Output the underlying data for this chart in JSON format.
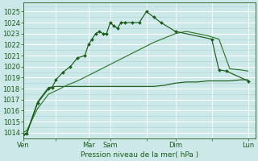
{
  "background_color": "#cce8e8",
  "grid_color": "#aad4d4",
  "grid_color_major": "#ffffff",
  "line_color_dark": "#1a5c1a",
  "line_color_medium": "#2d7a2d",
  "ylabel_text": "Pression niveau de la mer( hPa )",
  "ylim": [
    1013.5,
    1025.8
  ],
  "ylim_bottom": 1013.5,
  "ylim_top": 1025.8,
  "xtick_labels": [
    "Ven",
    "",
    "Mar",
    "Sam",
    "",
    "Dim",
    "",
    "Lun"
  ],
  "xtick_positions": [
    0,
    4.5,
    9,
    12,
    17,
    21,
    26,
    31
  ],
  "xlim": [
    0,
    32
  ],
  "series1_x": [
    0.0,
    0.5,
    2.0,
    3.5,
    4.0,
    4.5,
    5.5,
    6.5,
    7.5,
    8.5,
    9.0,
    9.5,
    10.0,
    10.5,
    11.0,
    11.5,
    12.0,
    12.5,
    13.0,
    13.5,
    14.0,
    15.0,
    16.0,
    17.0,
    18.0,
    19.0,
    21.0,
    26.0,
    27.0,
    28.0,
    31.0
  ],
  "series1_y": [
    1013.8,
    1013.9,
    1016.7,
    1018.0,
    1018.1,
    1018.8,
    1019.5,
    1020.0,
    1020.8,
    1021.0,
    1022.0,
    1022.5,
    1023.0,
    1023.2,
    1023.0,
    1023.0,
    1024.0,
    1023.7,
    1023.5,
    1024.0,
    1024.0,
    1024.0,
    1024.0,
    1025.0,
    1024.5,
    1024.0,
    1023.2,
    1022.5,
    1019.7,
    1019.6,
    1018.7
  ],
  "series2_x": [
    0.0,
    0.5,
    2.0,
    3.5,
    4.5,
    6.0,
    7.5,
    9.0,
    10.5,
    12.0,
    13.5,
    15.0,
    16.5,
    18.0,
    19.5,
    21.0,
    22.5,
    24.0,
    25.5,
    27.0,
    28.5,
    30.0,
    31.0
  ],
  "series2_y": [
    1013.8,
    1014.0,
    1016.8,
    1018.1,
    1018.2,
    1018.2,
    1018.2,
    1018.2,
    1018.2,
    1018.2,
    1018.2,
    1018.2,
    1018.2,
    1018.2,
    1018.3,
    1018.5,
    1018.6,
    1018.6,
    1018.7,
    1018.7,
    1018.7,
    1018.8,
    1018.8
  ],
  "series3_x": [
    0.0,
    0.5,
    2.0,
    3.5,
    4.5,
    6.0,
    7.5,
    9.0,
    10.5,
    12.0,
    13.5,
    15.0,
    16.5,
    18.0,
    19.5,
    21.0,
    22.5,
    24.0,
    25.5,
    27.0,
    28.5,
    30.0,
    31.0
  ],
  "series3_y": [
    1014.0,
    1014.2,
    1016.2,
    1017.5,
    1017.8,
    1018.3,
    1018.7,
    1019.2,
    1019.7,
    1020.2,
    1020.7,
    1021.2,
    1021.7,
    1022.2,
    1022.6,
    1023.0,
    1023.2,
    1023.0,
    1022.8,
    1022.5,
    1019.8,
    1019.7,
    1019.6
  ]
}
